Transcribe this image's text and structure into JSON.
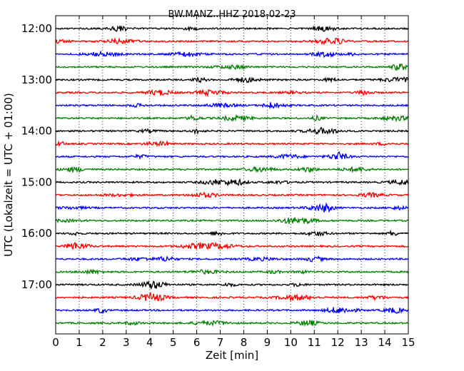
{
  "chart_data": {
    "type": "line",
    "title": "BW.MANZ..HHZ 2018-02-23",
    "xlabel": "Zeit  [min]",
    "ylabel": "UTC (Lokalzeit = UTC + 01:00)",
    "xlim": [
      0,
      15
    ],
    "x_ticks": [
      "0",
      "1",
      "2",
      "3",
      "4",
      "5",
      "6",
      "7",
      "8",
      "9",
      "10",
      "11",
      "12",
      "13",
      "14",
      "15"
    ],
    "y_tick_labels": [
      "12:00",
      "13:00",
      "14:00",
      "15:00",
      "16:00",
      "17:00"
    ],
    "trace_minutes": 15,
    "grid_x": true,
    "colors": [
      "#000000",
      "#ff0000",
      "#0000ff",
      "#008000"
    ],
    "trace_start_times": [
      "12:00",
      "12:15",
      "12:30",
      "12:45",
      "13:00",
      "13:15",
      "13:30",
      "13:45",
      "14:00",
      "14:15",
      "14:30",
      "14:45",
      "15:00",
      "15:15",
      "15:30",
      "15:45",
      "16:00",
      "16:15",
      "16:30",
      "16:45",
      "17:00",
      "17:15",
      "17:30",
      "17:45"
    ]
  }
}
